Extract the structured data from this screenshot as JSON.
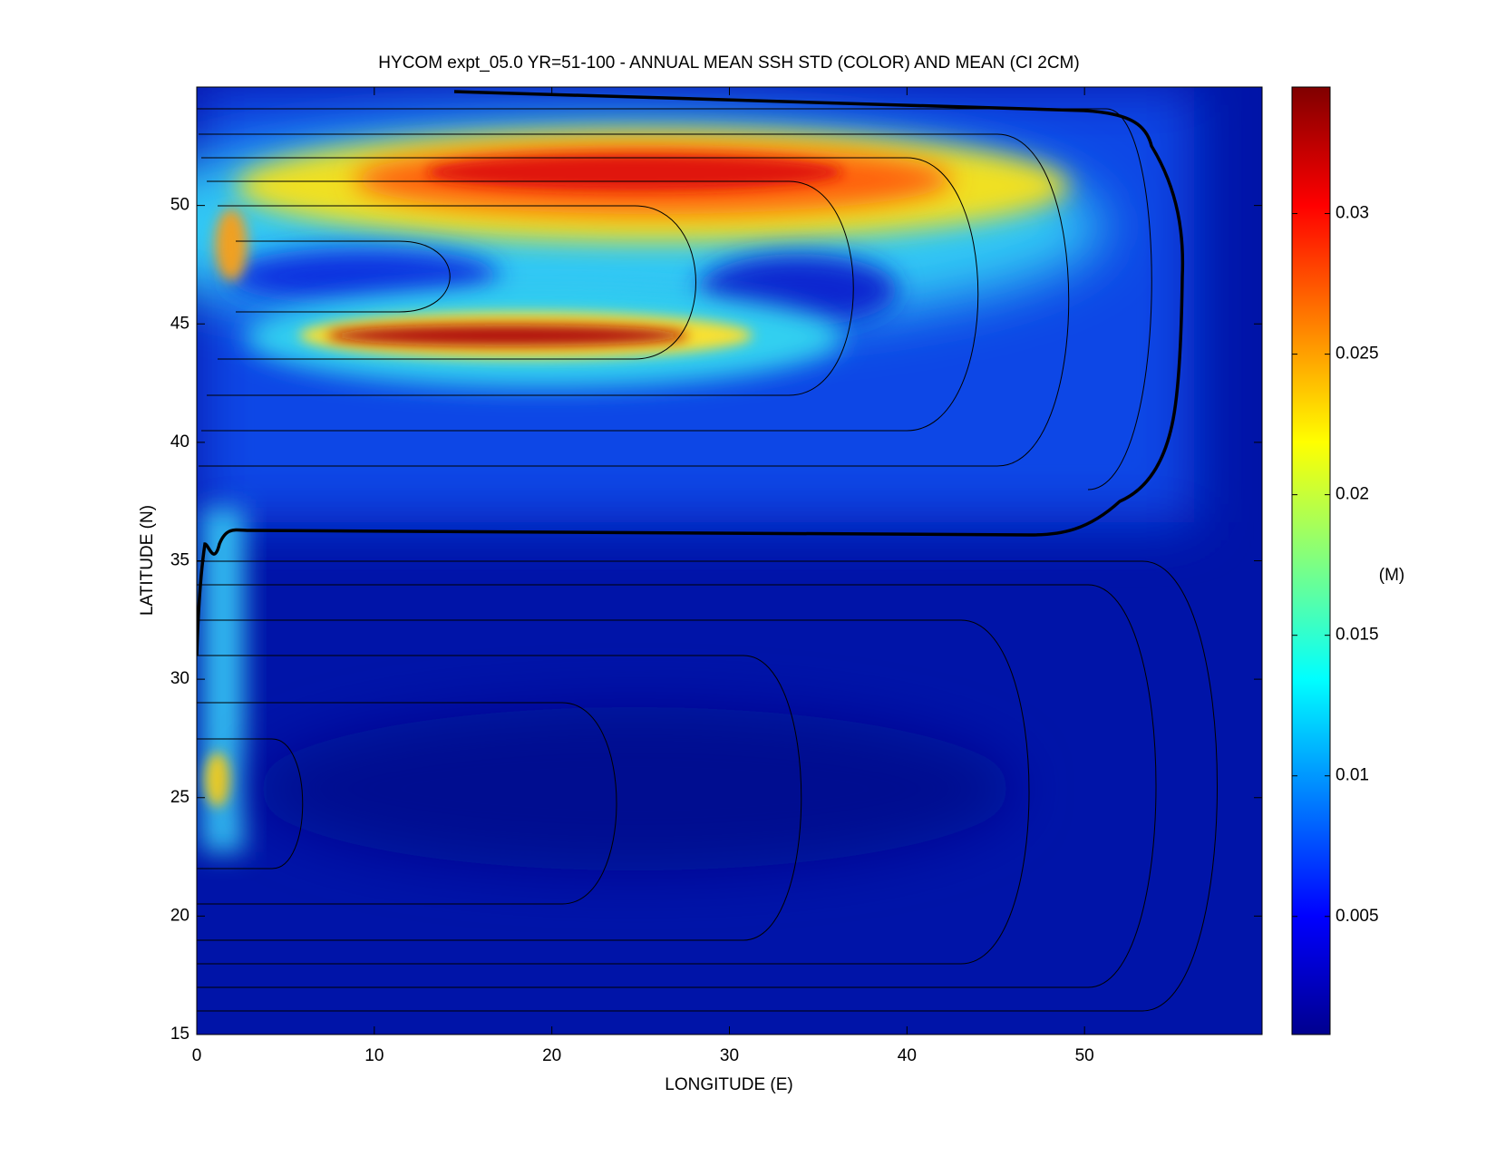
{
  "chart_data": {
    "type": "heatmap",
    "title": "HYCOM expt_05.0 YR=51-100 - ANNUAL MEAN SSH STD (COLOR) AND MEAN (CI 2CM)",
    "x_label": "LONGITUDE (E)",
    "y_label": "LATITUDE (N)",
    "colorbar_label": "(M)",
    "colormap": "jet",
    "xlim": [
      0,
      60
    ],
    "xticks": [
      0,
      10,
      20,
      30,
      40,
      50
    ],
    "ylim": [
      15,
      55
    ],
    "yticks": [
      15,
      20,
      25,
      30,
      35,
      40,
      45,
      50
    ],
    "clim": [
      0.0008,
      0.0345
    ],
    "cticks": [
      0.005,
      0.01,
      0.015,
      0.02,
      0.025,
      0.03
    ]
  }
}
